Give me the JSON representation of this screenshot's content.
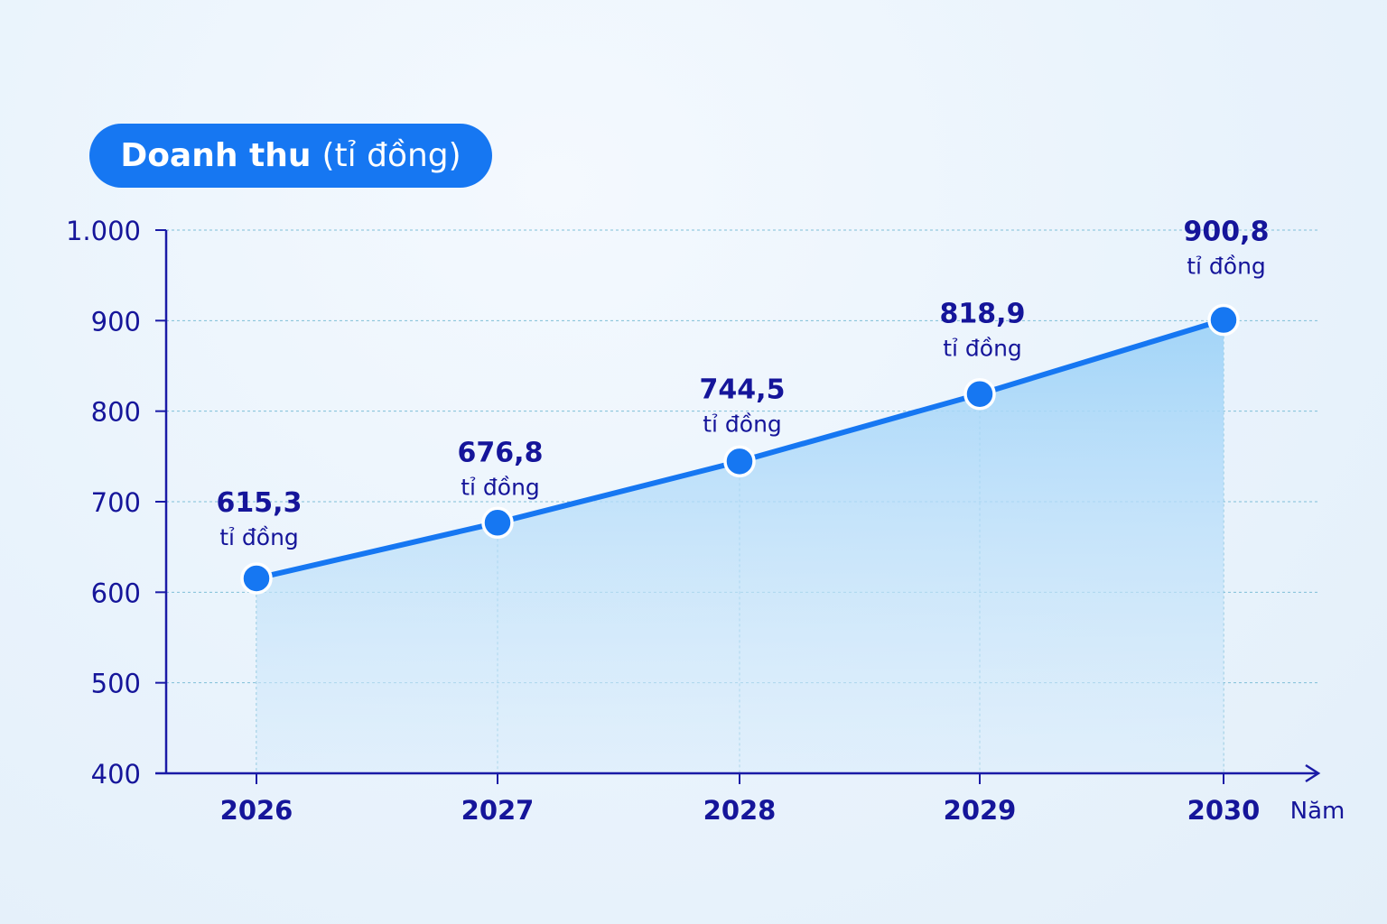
{
  "chart_data": {
    "type": "area",
    "title_bold": "Doanh thu",
    "title_unit": "(tỉ đồng)",
    "x_unit_label": "Năm",
    "categories": [
      "2026",
      "2027",
      "2028",
      "2029",
      "2030"
    ],
    "values": [
      615.3,
      676.8,
      744.5,
      818.9,
      900.8
    ],
    "value_labels": [
      "615,3",
      "676,8",
      "744,5",
      "818,9",
      "900,8"
    ],
    "value_unit_label": "tỉ đồng",
    "y_ticks": [
      400,
      500,
      600,
      700,
      800,
      900,
      1000
    ],
    "y_tick_labels": [
      "400",
      "500",
      "600",
      "700",
      "800",
      "900",
      "1.000"
    ],
    "ylim": [
      400,
      1000
    ],
    "grid": true,
    "colors": {
      "line": "#1677f2",
      "axis": "#1a1aa6",
      "text": "#15159a",
      "fill": "#9fd3f8"
    }
  }
}
